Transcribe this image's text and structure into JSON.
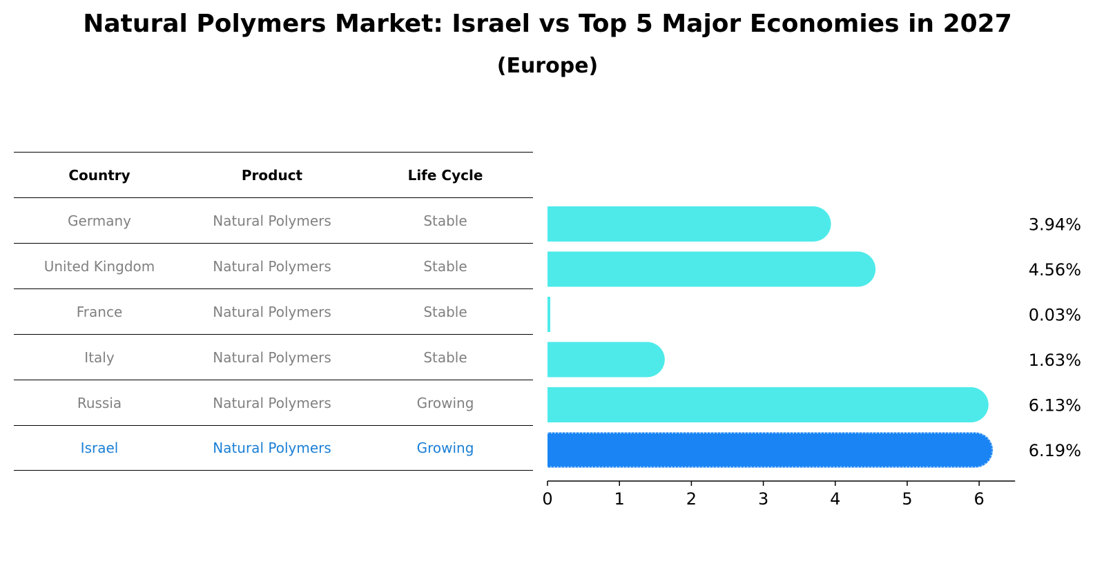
{
  "title": "Natural Polymers Market: Israel vs Top 5 Major Economies in 2027",
  "subtitle": "(Europe)",
  "table": {
    "headers": [
      "Country",
      "Product",
      "Life Cycle"
    ],
    "rows": [
      {
        "country": "Germany",
        "product": "Natural Polymers",
        "life_cycle": "Stable"
      },
      {
        "country": "United Kingdom",
        "product": "Natural Polymers",
        "life_cycle": "Stable"
      },
      {
        "country": "France",
        "product": "Natural Polymers",
        "life_cycle": "Stable"
      },
      {
        "country": "Italy",
        "product": "Natural Polymers",
        "life_cycle": "Stable"
      },
      {
        "country": "Russia",
        "product": "Natural Polymers",
        "life_cycle": "Growing"
      },
      {
        "country": "Israel",
        "product": "Natural Polymers",
        "life_cycle": "Growing"
      }
    ]
  },
  "colors": {
    "bar": "#4eeaea",
    "highlight_bar": "#1a84f4",
    "highlight_text": "#1a7fd6",
    "muted_text": "#808080"
  },
  "chart_data": {
    "type": "bar",
    "orientation": "horizontal",
    "categories": [
      "Germany",
      "United Kingdom",
      "France",
      "Italy",
      "Russia",
      "Israel"
    ],
    "values": [
      3.94,
      4.56,
      0.03,
      1.63,
      6.13,
      6.19
    ],
    "value_labels": [
      "3.94%",
      "4.56%",
      "0.03%",
      "1.63%",
      "6.13%",
      "6.19%"
    ],
    "highlight": "Israel",
    "xlim": [
      0,
      6.5
    ],
    "xticks": [
      0,
      1,
      2,
      3,
      4,
      5,
      6
    ],
    "xlabel": "",
    "ylabel": "",
    "grid": false
  }
}
